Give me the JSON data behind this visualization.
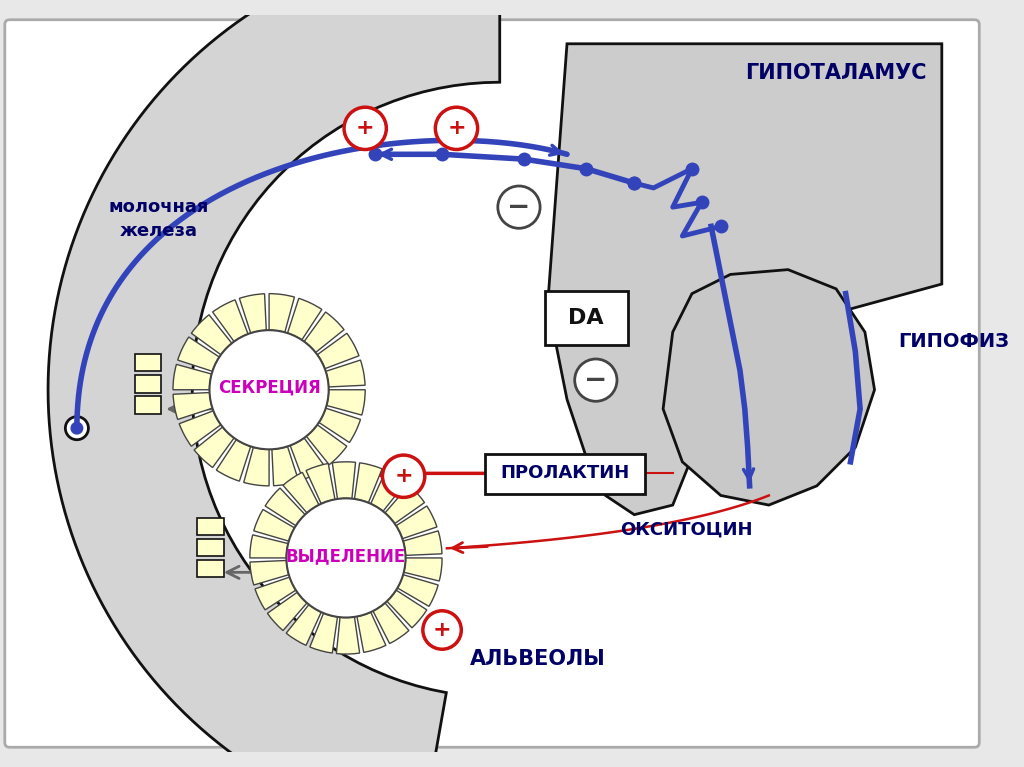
{
  "bg_color": "#e8e8e8",
  "white": "#ffffff",
  "blue": "#3344bb",
  "red": "#cc1111",
  "magenta": "#cc00bb",
  "dark_blue": "#000066",
  "gray_fill": "#cccccc",
  "cell_fill": "#ffffcc",
  "cell_border": "#444444",
  "black": "#111111",
  "text_hypothalamus": "ГИПОТАЛАМУС",
  "text_hypophysis": "ГИПОФИЗ",
  "text_mammary_1": "молочная",
  "text_mammary_2": "железа",
  "text_prolactin": "ПРОЛАКТИН",
  "text_da": "DA",
  "text_secretion": "СЕКРЕЦИЯ",
  "text_excretion": "ВЫДЕЛЕНИЕ",
  "text_oxytocin": "ОКСИТОЦИН",
  "text_alveoli": "АЛЬВЕОЛЫ"
}
